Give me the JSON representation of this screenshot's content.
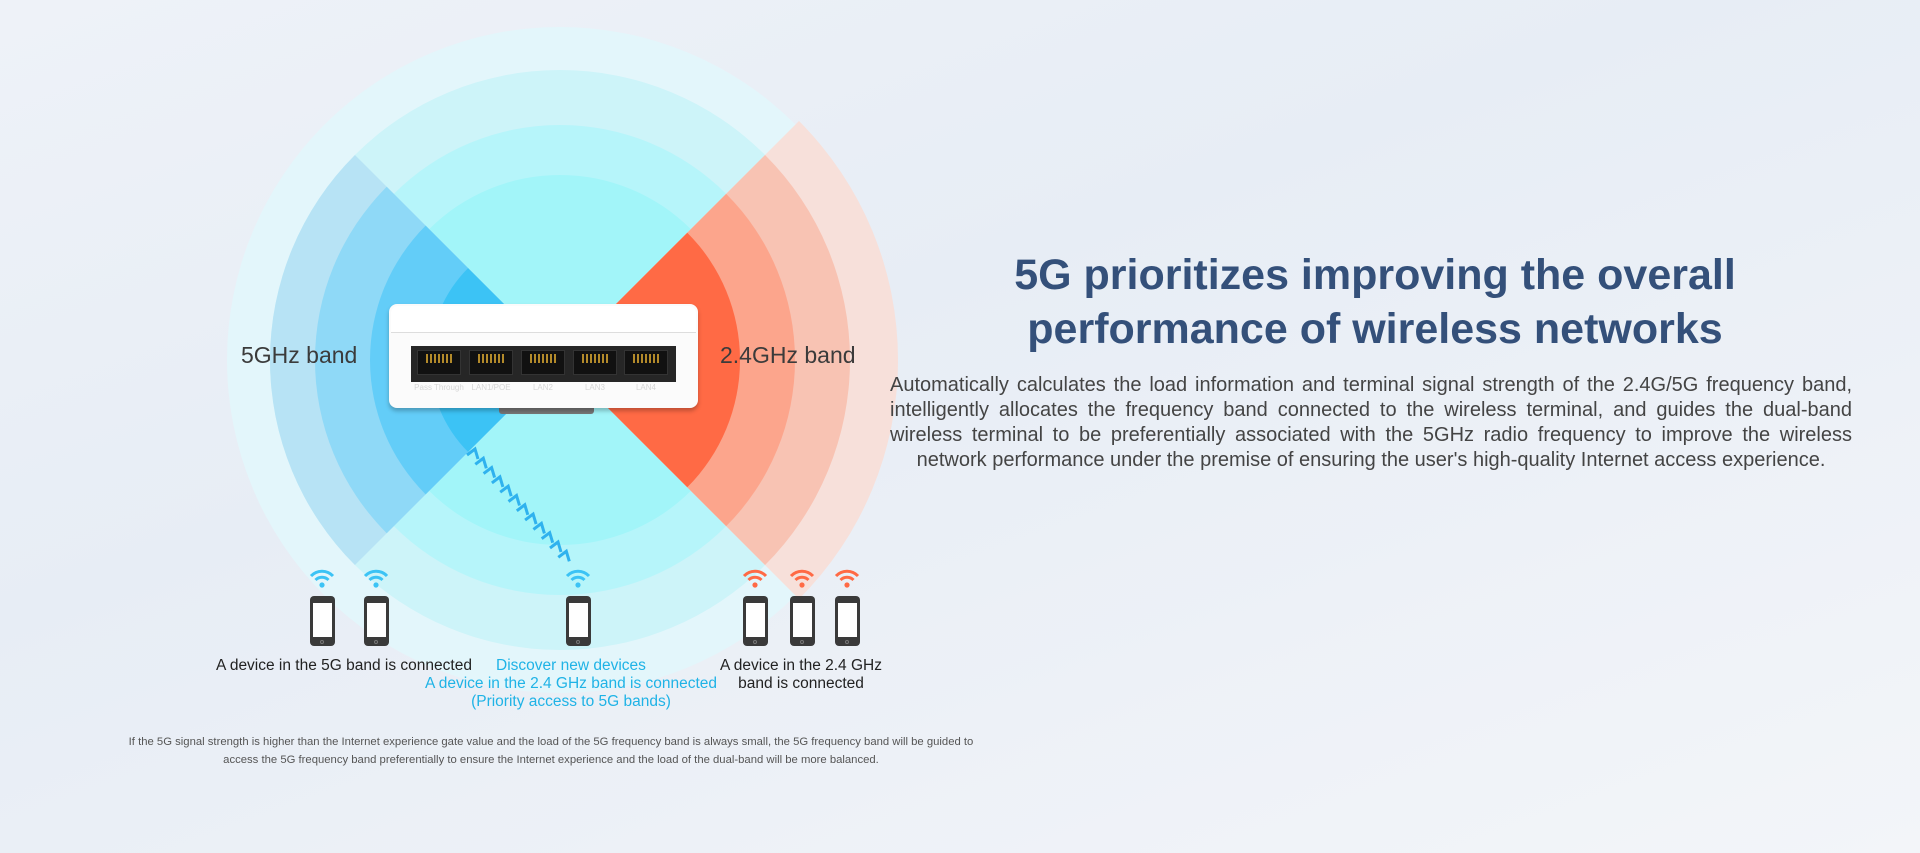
{
  "heading": {
    "line1": "5G prioritizes improving the overall",
    "line2": "performance of wireless networks"
  },
  "description": "Automatically calculates the load information and terminal signal strength of the 2.4G/5G frequency band, intelligently allocates the frequency band connected to the wireless terminal, and guides the dual-band wireless terminal to be preferentially associated with the 5GHz radio frequency to improve the wireless network performance under the premise of ensuring the user's high-quality Internet access experience.",
  "diagram": {
    "band_5g_label": "5GHz band",
    "band_24g_label": "2.4GHz band",
    "router_ports": [
      "Pass Through",
      "LAN1/POE",
      "LAN2",
      "LAN3",
      "LAN4"
    ],
    "captions": {
      "left": "A device in the 5G band is connected",
      "middle_line1": "Discover new devices",
      "middle_line2": "A device in the 2.4 GHz band is connected",
      "middle_line3": "(Priority access to 5G bands)",
      "right_line1": "A device in the 2.4 GHz",
      "right_line2": "band is connected"
    },
    "colors": {
      "band_5g": "#3cc3f5",
      "band_24g": "#ff6a45",
      "coverage": "#8ff0f8",
      "accent_text": "#1fb3e6"
    }
  },
  "footnote": "If the 5G signal strength is higher than the Internet experience gate value and the load of the 5G frequency band is always small, the 5G frequency band will be guided to access the 5G frequency band preferentially to ensure the Internet experience and the load of the dual-band will be more balanced."
}
